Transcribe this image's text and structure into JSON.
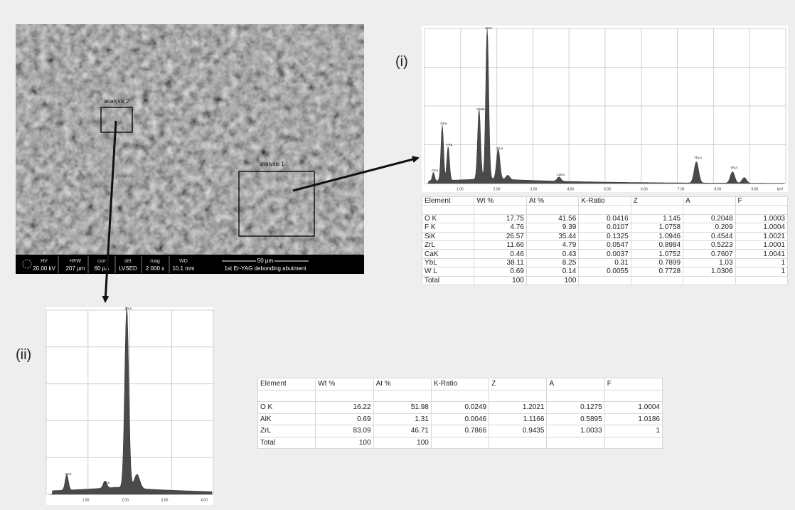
{
  "sem_image": {
    "labels": [
      "analysis 2",
      "analysis 1"
    ],
    "info_bar": {
      "headers": [
        "HV",
        "HFW",
        "curr",
        "det",
        "mag",
        "WD"
      ],
      "values": [
        "20.00 kV",
        "207 µm",
        "60 pA",
        "LVSED",
        "2 000 x",
        "10.1 mm"
      ],
      "scale": "50 µm",
      "caption": "1st Er-YAG debonding abutment"
    }
  },
  "panel_i": {
    "label": "(i)",
    "spectrum": {
      "x_ticks": [
        "1.00",
        "2.00",
        "3.00",
        "4.00",
        "5.00",
        "6.00",
        "7.00",
        "8.00",
        "9.00",
        "keV"
      ],
      "peaks": [
        "CKa",
        "OKa",
        "FKa",
        "YbMa",
        "SiKa",
        "ZrLa",
        "CaKa",
        "YbLa",
        "WLa"
      ]
    },
    "table": {
      "header": [
        "Element",
        "Wt %",
        "At %",
        "K-Ratio",
        "Z",
        "A",
        "F"
      ],
      "rows": [
        [
          "O K",
          "17.75",
          "41.56",
          "0.0416",
          "1.145",
          "0.2048",
          "1.0003"
        ],
        [
          "F K",
          "4.76",
          "9.39",
          "0.0107",
          "1.0758",
          "0.209",
          "1.0004"
        ],
        [
          "SiK",
          "26.57",
          "35.44",
          "0.1325",
          "1.0946",
          "0.4544",
          "1.0021"
        ],
        [
          "ZrL",
          "11.66",
          "4.79",
          "0.0547",
          "0.8984",
          "0.5223",
          "1.0001"
        ],
        [
          "CaK",
          "0.46",
          "0.43",
          "0.0037",
          "1.0752",
          "0.7607",
          "1.0041"
        ],
        [
          "YbL",
          "38.11",
          "8.25",
          "0.31",
          "0.7899",
          "1.03",
          "1"
        ],
        [
          "W L",
          "0.69",
          "0.14",
          "0.0055",
          "0.7728",
          "1.0306",
          "1"
        ],
        [
          "Total",
          "100",
          "100"
        ]
      ]
    }
  },
  "panel_ii": {
    "label": "(ii)",
    "spectrum": {
      "x_ticks": [
        "1.00",
        "2.00",
        "3.00",
        "4.00"
      ],
      "peaks": [
        "OKa",
        "AlKa",
        "ZrLa"
      ]
    },
    "table": {
      "header": [
        "Element",
        "Wt %",
        "At %",
        "K-Ratio",
        "Z",
        "A",
        "F"
      ],
      "rows": [
        [
          "O K",
          "16.22",
          "51.98",
          "0.0249",
          "1.2021",
          "0.1275",
          "1.0004"
        ],
        [
          "AlK",
          "0.69",
          "1.31",
          "0.0046",
          "1.1166",
          "0.5895",
          "1.0186"
        ],
        [
          "ZrL",
          "83.09",
          "46.71",
          "0.7866",
          "0.9435",
          "1.0033",
          "1"
        ],
        [
          "Total",
          "100",
          "100"
        ]
      ]
    }
  }
}
